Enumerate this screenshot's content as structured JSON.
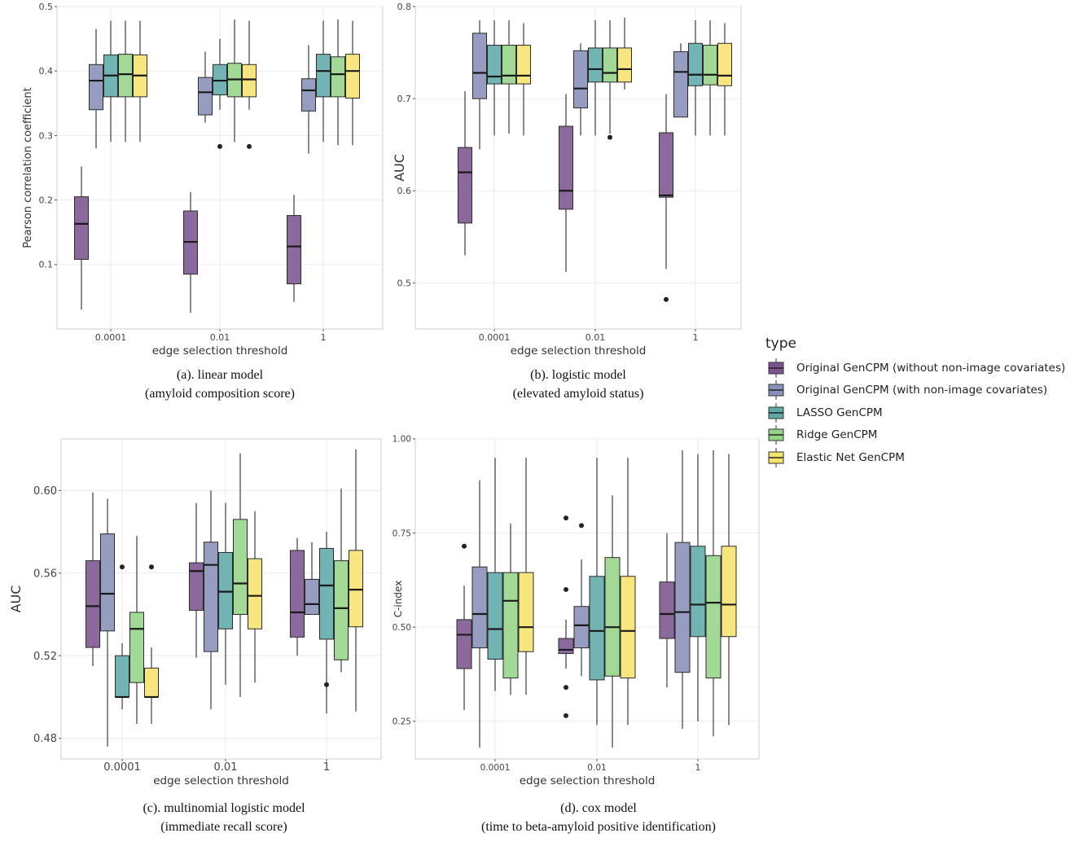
{
  "chart_data": [
    {
      "type": "box",
      "xlabel": "edge selection threshold",
      "ylabel": "Pearson correlation coefficient",
      "categories": [
        "0.0001",
        "0.01",
        "1"
      ],
      "ylim": [
        0.0,
        0.5
      ],
      "yticks": [
        0.1,
        0.2,
        0.3,
        0.4,
        0.5
      ],
      "ytick_labels": [
        "0.1",
        "0.2",
        "0.3",
        "0.4",
        "0.5"
      ],
      "caption": [
        "(a). linear model",
        "(amyloid composition score)"
      ],
      "series": [
        {
          "type": "Original GenCPM (without non-image covariates)",
          "boxes": [
            {
              "min": 0.03,
              "q1": 0.108,
              "median": 0.163,
              "q3": 0.205,
              "max": 0.252,
              "outliers": []
            },
            {
              "min": 0.025,
              "q1": 0.085,
              "median": 0.135,
              "q3": 0.183,
              "max": 0.212,
              "outliers": []
            },
            {
              "min": 0.042,
              "q1": 0.07,
              "median": 0.128,
              "q3": 0.176,
              "max": 0.208,
              "outliers": []
            }
          ]
        },
        {
          "type": "Original GenCPM (with non-image covariates)",
          "boxes": [
            {
              "min": 0.28,
              "q1": 0.34,
              "median": 0.385,
              "q3": 0.41,
              "max": 0.465,
              "outliers": []
            },
            {
              "min": 0.32,
              "q1": 0.332,
              "median": 0.367,
              "q3": 0.39,
              "max": 0.43,
              "outliers": []
            },
            {
              "min": 0.272,
              "q1": 0.338,
              "median": 0.37,
              "q3": 0.388,
              "max": 0.44,
              "outliers": []
            }
          ]
        },
        {
          "type": "LASSO GenCPM",
          "boxes": [
            {
              "min": 0.29,
              "q1": 0.36,
              "median": 0.393,
              "q3": 0.425,
              "max": 0.478,
              "outliers": []
            },
            {
              "min": 0.34,
              "q1": 0.363,
              "median": 0.385,
              "q3": 0.41,
              "max": 0.45,
              "outliers": [
                0.283
              ]
            },
            {
              "min": 0.29,
              "q1": 0.36,
              "median": 0.4,
              "q3": 0.426,
              "max": 0.478,
              "outliers": []
            }
          ]
        },
        {
          "type": "Ridge GenCPM",
          "boxes": [
            {
              "min": 0.29,
              "q1": 0.36,
              "median": 0.395,
              "q3": 0.426,
              "max": 0.478,
              "outliers": []
            },
            {
              "min": 0.29,
              "q1": 0.36,
              "median": 0.387,
              "q3": 0.412,
              "max": 0.48,
              "outliers": []
            },
            {
              "min": 0.285,
              "q1": 0.36,
              "median": 0.395,
              "q3": 0.422,
              "max": 0.48,
              "outliers": []
            }
          ]
        },
        {
          "type": "Elastic Net GenCPM",
          "boxes": [
            {
              "min": 0.29,
              "q1": 0.36,
              "median": 0.393,
              "q3": 0.425,
              "max": 0.478,
              "outliers": []
            },
            {
              "min": 0.34,
              "q1": 0.36,
              "median": 0.387,
              "q3": 0.41,
              "max": 0.478,
              "outliers": [
                0.283
              ]
            },
            {
              "min": 0.285,
              "q1": 0.358,
              "median": 0.4,
              "q3": 0.426,
              "max": 0.478,
              "outliers": []
            }
          ]
        }
      ]
    },
    {
      "type": "box",
      "xlabel": "edge selection threshold",
      "ylabel": "AUC",
      "categories": [
        "0.0001",
        "0.01",
        "1"
      ],
      "ylim": [
        0.45,
        0.8
      ],
      "yticks": [
        0.5,
        0.6,
        0.7,
        0.8
      ],
      "ytick_labels": [
        "0.5",
        "0.6",
        "0.7",
        "0.8"
      ],
      "caption": [
        "(b). logistic model",
        "(elevated amyloid status)"
      ],
      "series": [
        {
          "type": "Original GenCPM (without non-image covariates)",
          "boxes": [
            {
              "min": 0.53,
              "q1": 0.565,
              "median": 0.62,
              "q3": 0.647,
              "max": 0.708,
              "outliers": []
            },
            {
              "min": 0.512,
              "q1": 0.58,
              "median": 0.6,
              "q3": 0.67,
              "max": 0.705,
              "outliers": []
            },
            {
              "min": 0.515,
              "q1": 0.593,
              "median": 0.595,
              "q3": 0.663,
              "max": 0.705,
              "outliers": [
                0.482
              ]
            }
          ]
        },
        {
          "type": "Original GenCPM (with non-image covariates)",
          "boxes": [
            {
              "min": 0.645,
              "q1": 0.7,
              "median": 0.728,
              "q3": 0.771,
              "max": 0.785,
              "outliers": []
            },
            {
              "min": 0.66,
              "q1": 0.69,
              "median": 0.711,
              "q3": 0.752,
              "max": 0.76,
              "outliers": []
            },
            {
              "min": 0.68,
              "q1": 0.68,
              "median": 0.729,
              "q3": 0.751,
              "max": 0.76,
              "outliers": []
            }
          ]
        },
        {
          "type": "LASSO GenCPM",
          "boxes": [
            {
              "min": 0.66,
              "q1": 0.716,
              "median": 0.724,
              "q3": 0.758,
              "max": 0.785,
              "outliers": []
            },
            {
              "min": 0.66,
              "q1": 0.718,
              "median": 0.732,
              "q3": 0.755,
              "max": 0.785,
              "outliers": []
            },
            {
              "min": 0.66,
              "q1": 0.714,
              "median": 0.726,
              "q3": 0.76,
              "max": 0.785,
              "outliers": []
            }
          ]
        },
        {
          "type": "Ridge GenCPM",
          "boxes": [
            {
              "min": 0.662,
              "q1": 0.716,
              "median": 0.725,
              "q3": 0.758,
              "max": 0.785,
              "outliers": []
            },
            {
              "min": 0.662,
              "q1": 0.718,
              "median": 0.728,
              "q3": 0.755,
              "max": 0.785,
              "outliers": [
                0.658
              ]
            },
            {
              "min": 0.66,
              "q1": 0.715,
              "median": 0.726,
              "q3": 0.758,
              "max": 0.785,
              "outliers": []
            }
          ]
        },
        {
          "type": "Elastic Net GenCPM",
          "boxes": [
            {
              "min": 0.66,
              "q1": 0.716,
              "median": 0.725,
              "q3": 0.758,
              "max": 0.782,
              "outliers": []
            },
            {
              "min": 0.71,
              "q1": 0.718,
              "median": 0.732,
              "q3": 0.755,
              "max": 0.788,
              "outliers": []
            },
            {
              "min": 0.66,
              "q1": 0.714,
              "median": 0.725,
              "q3": 0.76,
              "max": 0.782,
              "outliers": []
            }
          ]
        }
      ]
    },
    {
      "type": "box",
      "xlabel": "edge selection threshold",
      "ylabel": "AUC",
      "categories": [
        "0.0001",
        "0.01",
        "1"
      ],
      "ylim": [
        0.47,
        0.625
      ],
      "yticks": [
        0.48,
        0.52,
        0.56,
        0.6
      ],
      "ytick_labels": [
        "0.48",
        "0.52",
        "0.56",
        "0.60"
      ],
      "caption": [
        "(c). multinomial logistic model",
        "(immediate recall score)"
      ],
      "series": [
        {
          "type": "Original GenCPM (without non-image covariates)",
          "boxes": [
            {
              "min": 0.515,
              "q1": 0.524,
              "median": 0.544,
              "q3": 0.566,
              "max": 0.599,
              "outliers": []
            },
            {
              "min": 0.519,
              "q1": 0.542,
              "median": 0.561,
              "q3": 0.565,
              "max": 0.594,
              "outliers": []
            },
            {
              "min": 0.52,
              "q1": 0.529,
              "median": 0.541,
              "q3": 0.571,
              "max": 0.577,
              "outliers": []
            }
          ]
        },
        {
          "type": "Original GenCPM (with non-image covariates)",
          "boxes": [
            {
              "min": 0.476,
              "q1": 0.532,
              "median": 0.55,
              "q3": 0.579,
              "max": 0.596,
              "outliers": []
            },
            {
              "min": 0.494,
              "q1": 0.522,
              "median": 0.564,
              "q3": 0.575,
              "max": 0.6,
              "outliers": []
            },
            {
              "min": 0.54,
              "q1": 0.54,
              "median": 0.545,
              "q3": 0.557,
              "max": 0.575,
              "outliers": []
            }
          ]
        },
        {
          "type": "LASSO GenCPM",
          "boxes": [
            {
              "min": 0.494,
              "q1": 0.5,
              "median": 0.5,
              "q3": 0.52,
              "max": 0.526,
              "outliers": [
                0.563
              ]
            },
            {
              "min": 0.506,
              "q1": 0.533,
              "median": 0.551,
              "q3": 0.57,
              "max": 0.594,
              "outliers": []
            },
            {
              "min": 0.492,
              "q1": 0.528,
              "median": 0.554,
              "q3": 0.572,
              "max": 0.58,
              "outliers": [
                0.506
              ]
            }
          ]
        },
        {
          "type": "Ridge GenCPM",
          "boxes": [
            {
              "min": 0.487,
              "q1": 0.507,
              "median": 0.533,
              "q3": 0.541,
              "max": 0.578,
              "outliers": []
            },
            {
              "min": 0.5,
              "q1": 0.54,
              "median": 0.555,
              "q3": 0.586,
              "max": 0.618,
              "outliers": []
            },
            {
              "min": 0.512,
              "q1": 0.518,
              "median": 0.543,
              "q3": 0.566,
              "max": 0.601,
              "outliers": []
            }
          ]
        },
        {
          "type": "Elastic Net GenCPM",
          "boxes": [
            {
              "min": 0.487,
              "q1": 0.5,
              "median": 0.5,
              "q3": 0.514,
              "max": 0.524,
              "outliers": [
                0.563
              ]
            },
            {
              "min": 0.507,
              "q1": 0.533,
              "median": 0.549,
              "q3": 0.567,
              "max": 0.59,
              "outliers": []
            },
            {
              "min": 0.493,
              "q1": 0.534,
              "median": 0.552,
              "q3": 0.571,
              "max": 0.62,
              "outliers": []
            }
          ]
        }
      ]
    },
    {
      "type": "box",
      "xlabel": "edge selection threshold",
      "ylabel": "C-index",
      "categories": [
        "0.0001",
        "0.01",
        "1"
      ],
      "ylim": [
        0.15,
        1.0
      ],
      "yticks": [
        0.25,
        0.5,
        0.75,
        1.0
      ],
      "ytick_labels": [
        "0.25",
        "0.50",
        "0.75",
        "1.00"
      ],
      "caption": [
        "(d). cox model",
        "(time to beta-amyloid positive identification)"
      ],
      "series": [
        {
          "type": "Original GenCPM (without non-image covariates)",
          "boxes": [
            {
              "min": 0.28,
              "q1": 0.39,
              "median": 0.48,
              "q3": 0.52,
              "max": 0.61,
              "outliers": [
                0.715
              ]
            },
            {
              "min": 0.39,
              "q1": 0.43,
              "median": 0.44,
              "q3": 0.47,
              "max": 0.52,
              "outliers": [
                0.79,
                0.6,
                0.34,
                0.265
              ]
            },
            {
              "min": 0.34,
              "q1": 0.47,
              "median": 0.535,
              "q3": 0.62,
              "max": 0.75,
              "outliers": []
            }
          ]
        },
        {
          "type": "Original GenCPM (with non-image covariates)",
          "boxes": [
            {
              "min": 0.18,
              "q1": 0.445,
              "median": 0.535,
              "q3": 0.66,
              "max": 0.89,
              "outliers": []
            },
            {
              "min": 0.37,
              "q1": 0.445,
              "median": 0.505,
              "q3": 0.555,
              "max": 0.68,
              "outliers": [
                0.77
              ]
            },
            {
              "min": 0.23,
              "q1": 0.38,
              "median": 0.54,
              "q3": 0.725,
              "max": 0.97,
              "outliers": []
            }
          ]
        },
        {
          "type": "LASSO GenCPM",
          "boxes": [
            {
              "min": 0.33,
              "q1": 0.415,
              "median": 0.495,
              "q3": 0.645,
              "max": 0.95,
              "outliers": []
            },
            {
              "min": 0.24,
              "q1": 0.36,
              "median": 0.49,
              "q3": 0.635,
              "max": 0.95,
              "outliers": []
            },
            {
              "min": 0.25,
              "q1": 0.475,
              "median": 0.56,
              "q3": 0.715,
              "max": 0.96,
              "outliers": []
            }
          ]
        },
        {
          "type": "Ridge GenCPM",
          "boxes": [
            {
              "min": 0.32,
              "q1": 0.365,
              "median": 0.57,
              "q3": 0.645,
              "max": 0.775,
              "outliers": []
            },
            {
              "min": 0.18,
              "q1": 0.37,
              "median": 0.5,
              "q3": 0.685,
              "max": 0.85,
              "outliers": []
            },
            {
              "min": 0.21,
              "q1": 0.365,
              "median": 0.565,
              "q3": 0.69,
              "max": 0.97,
              "outliers": []
            }
          ]
        },
        {
          "type": "Elastic Net GenCPM",
          "boxes": [
            {
              "min": 0.32,
              "q1": 0.435,
              "median": 0.5,
              "q3": 0.645,
              "max": 0.95,
              "outliers": []
            },
            {
              "min": 0.24,
              "q1": 0.365,
              "median": 0.49,
              "q3": 0.635,
              "max": 0.95,
              "outliers": []
            },
            {
              "min": 0.24,
              "q1": 0.475,
              "median": 0.56,
              "q3": 0.715,
              "max": 0.96,
              "outliers": []
            }
          ]
        }
      ]
    }
  ],
  "legend": {
    "title": "type",
    "items": [
      {
        "label": "Original GenCPM (without non-image covariates)",
        "color": "#7b5490"
      },
      {
        "label": "Original GenCPM (with non-image covariates)",
        "color": "#8790b8"
      },
      {
        "label": "LASSO GenCPM",
        "color": "#5fa8a8"
      },
      {
        "label": "Ridge GenCPM",
        "color": "#95d487"
      },
      {
        "label": "Elastic Net GenCPM",
        "color": "#f6e26e"
      }
    ]
  },
  "colors": {
    "Original GenCPM (without non-image covariates)": "#7b5490",
    "Original GenCPM (with non-image covariates)": "#8790b8",
    "LASSO GenCPM": "#5fa8a8",
    "Ridge GenCPM": "#95d487",
    "Elastic Net GenCPM": "#f6e26e",
    "grid": "#ebebeb",
    "panel_border": "#cfcfcf",
    "box_line": "#2b2b2b"
  }
}
